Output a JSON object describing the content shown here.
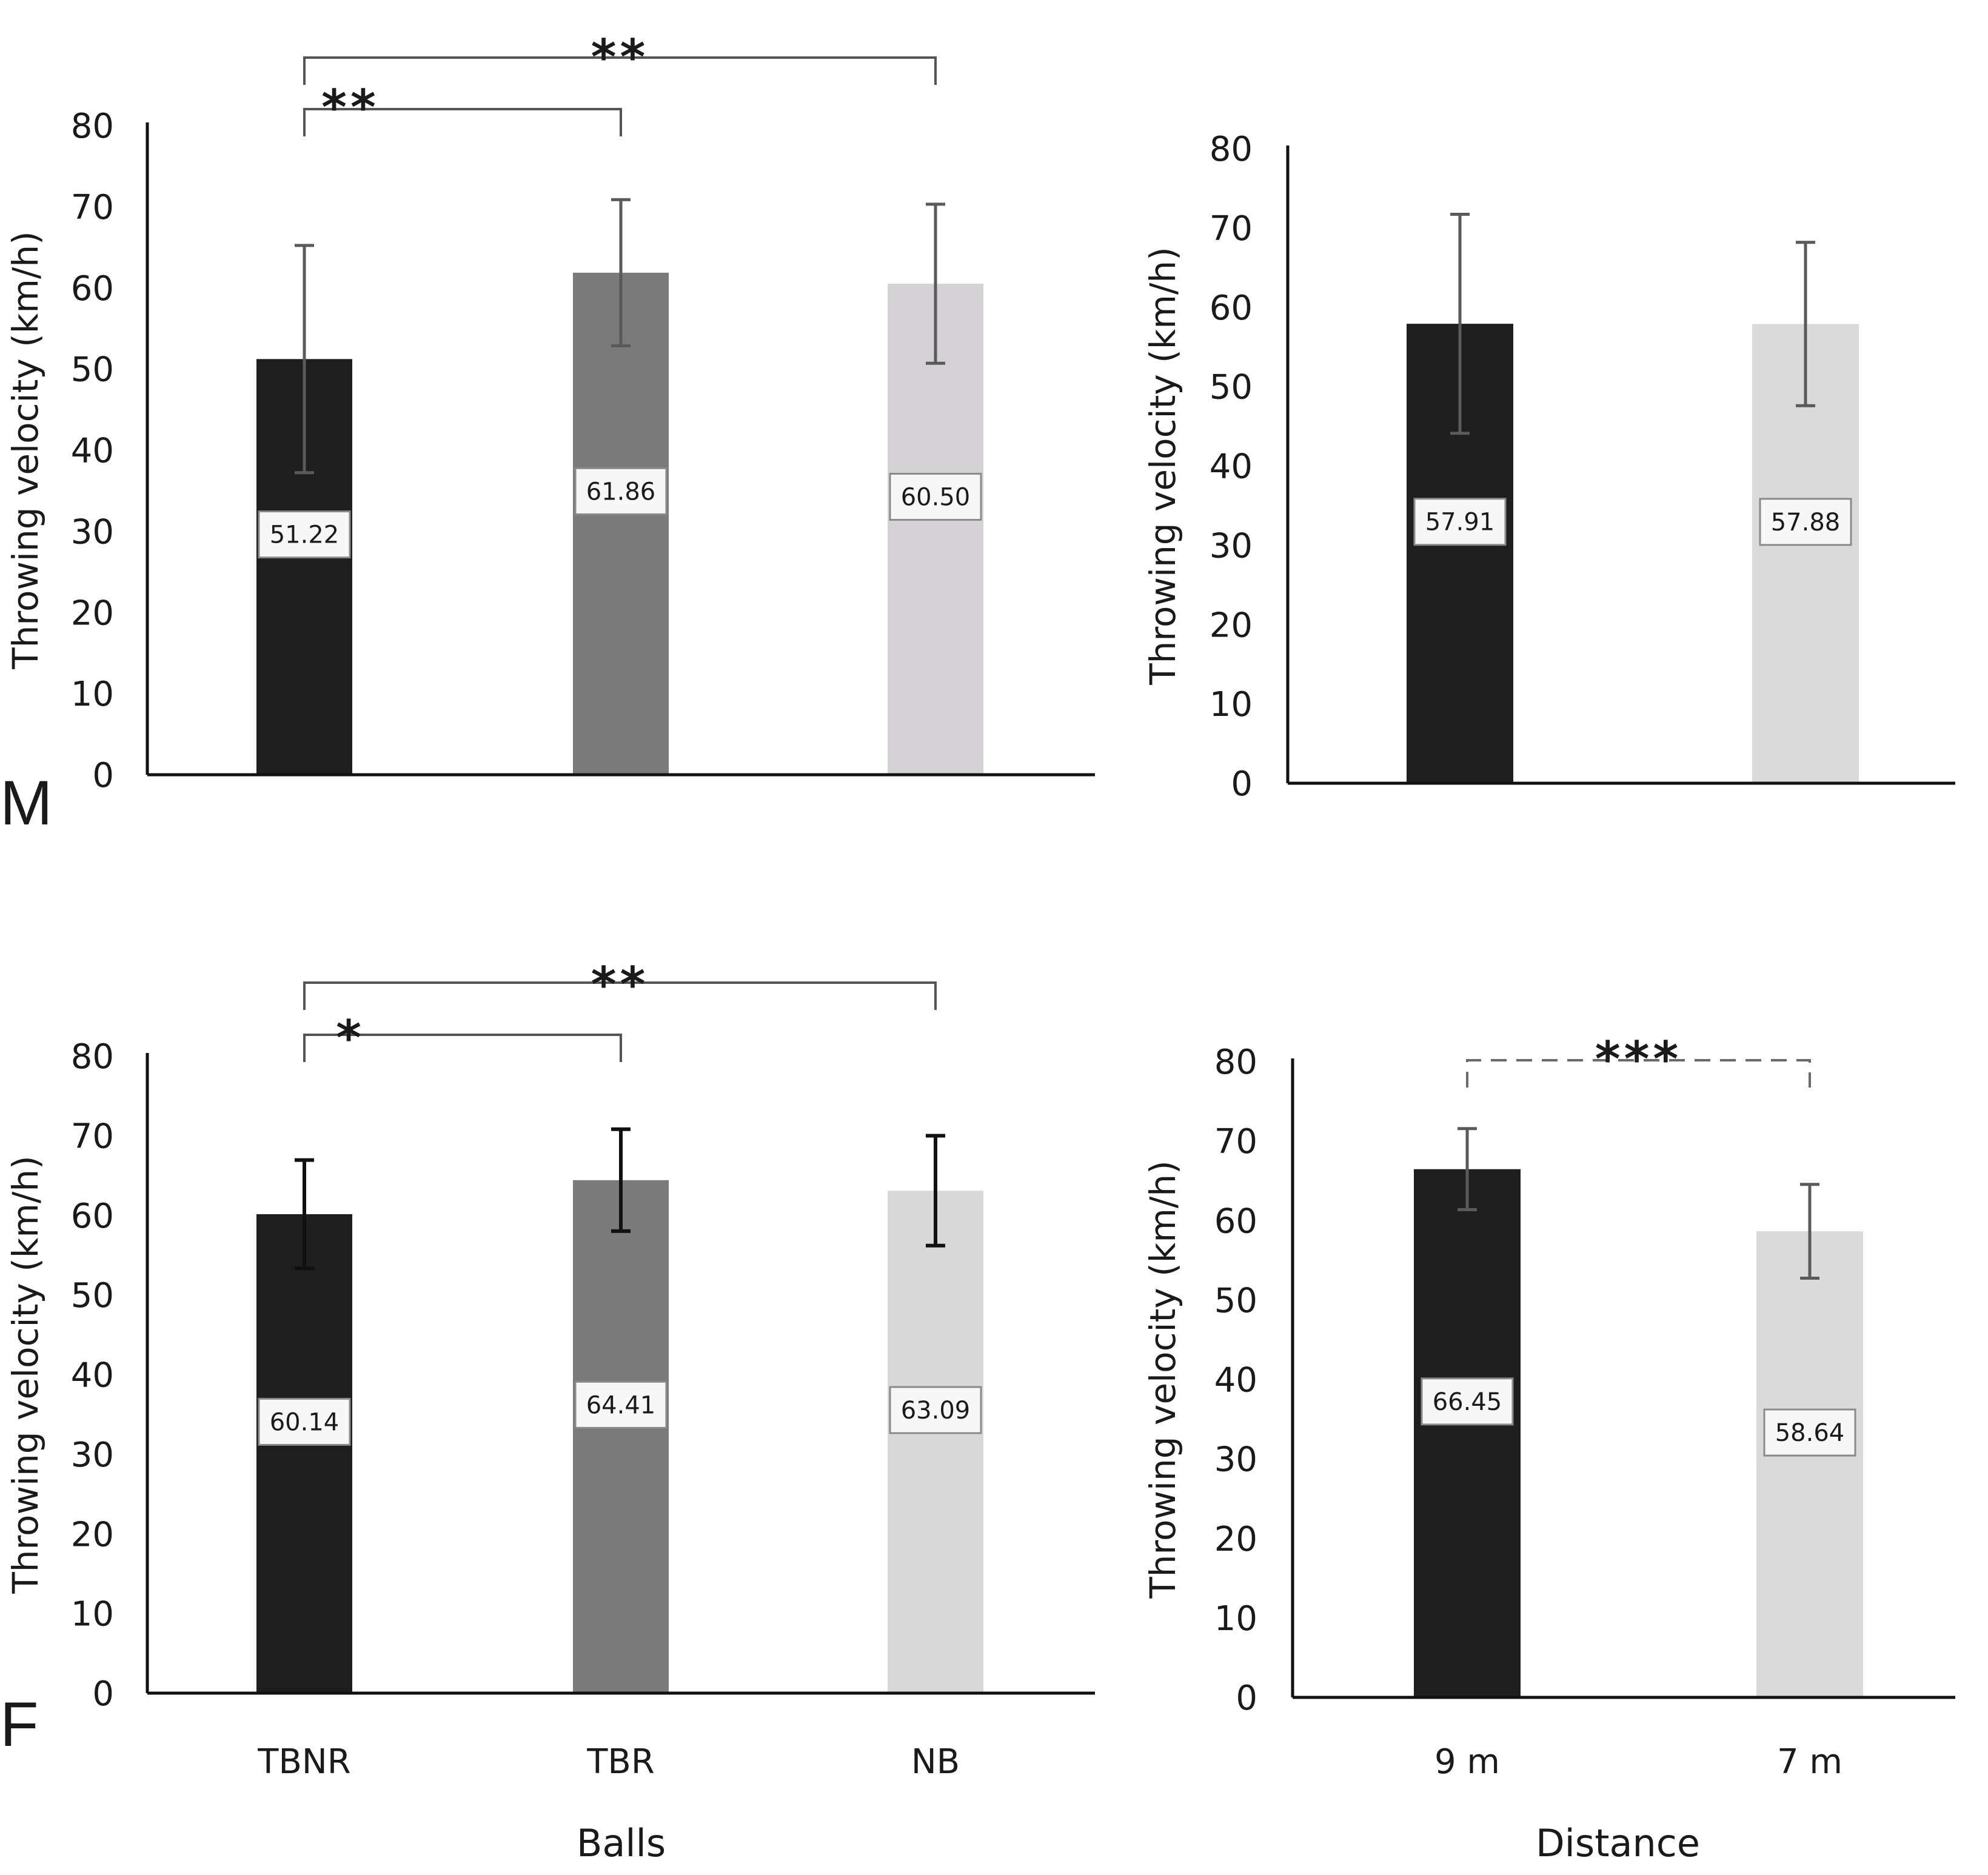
{
  "chart_data": [
    {
      "id": "m-balls",
      "type": "bar",
      "categories": [
        "TBNR",
        "TBR",
        "NB"
      ],
      "values": [
        51.22,
        61.86,
        60.5
      ],
      "error": [
        14.0,
        9.0,
        9.8
      ],
      "value_labels": [
        "51.22",
        "61.86",
        "60.50"
      ],
      "colors": [
        "#1e1e1e",
        "#7a7a7a",
        "#d4d2d4"
      ],
      "ylim": [
        0,
        80
      ],
      "yticks": [
        "0",
        "10",
        "20",
        "30",
        "40",
        "50",
        "60",
        "70",
        "80"
      ],
      "ylabel": "Throwing velocity (km/h)",
      "panel_label": "M",
      "significance": [
        {
          "from": 0,
          "to": 1,
          "stars": "**",
          "dashed": false
        },
        {
          "from": 0,
          "to": 2,
          "stars": "**",
          "dashed": false
        }
      ]
    },
    {
      "id": "m-distance",
      "type": "bar",
      "categories": [
        "9 m",
        "7 m"
      ],
      "values": [
        57.91,
        57.88
      ],
      "error": [
        13.8,
        10.3
      ],
      "value_labels": [
        "57.91",
        "57.88"
      ],
      "colors": [
        "#1e1e1e",
        "#dadada"
      ],
      "ylim": [
        0,
        80
      ],
      "yticks": [
        "0",
        "10",
        "20",
        "30",
        "40",
        "50",
        "60",
        "70",
        "80"
      ],
      "ylabel": "Throwing velocity (km/h)",
      "significance": []
    },
    {
      "id": "f-balls",
      "type": "bar",
      "categories": [
        "TBNR",
        "TBR",
        "NB"
      ],
      "values": [
        60.14,
        64.41,
        63.09
      ],
      "error": [
        6.8,
        6.4,
        6.9
      ],
      "value_labels": [
        "60.14",
        "64.41",
        "63.09"
      ],
      "colors": [
        "#1e1e1e",
        "#7a7a7a",
        "#d8d8d8"
      ],
      "ylim": [
        0,
        80
      ],
      "yticks": [
        "0",
        "10",
        "20",
        "30",
        "40",
        "50",
        "60",
        "70",
        "80"
      ],
      "ylabel": "Throwing velocity (km/h)",
      "xlabel": "Balls",
      "panel_label": "F",
      "significance": [
        {
          "from": 0,
          "to": 1,
          "stars": "*",
          "dashed": false
        },
        {
          "from": 0,
          "to": 2,
          "stars": "**",
          "dashed": false
        }
      ]
    },
    {
      "id": "f-distance",
      "type": "bar",
      "categories": [
        "9 m",
        "7 m"
      ],
      "values": [
        66.45,
        58.64
      ],
      "error": [
        5.1,
        5.9
      ],
      "value_labels": [
        "66.45",
        "58.64"
      ],
      "colors": [
        "#1e1e1e",
        "#dadada"
      ],
      "ylim": [
        0,
        80
      ],
      "yticks": [
        "0",
        "10",
        "20",
        "30",
        "40",
        "50",
        "60",
        "70",
        "80"
      ],
      "ylabel": "Throwing velocity (km/h)",
      "xlabel": "Distance",
      "significance": [
        {
          "from": 0,
          "to": 1,
          "stars": "***",
          "dashed": true
        }
      ]
    }
  ]
}
